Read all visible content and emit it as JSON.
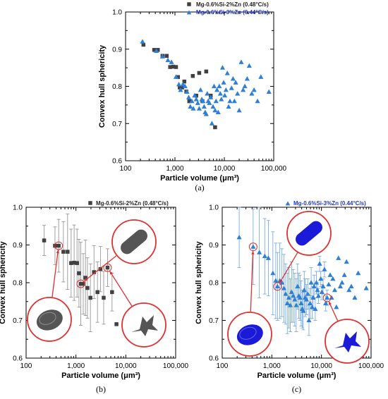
{
  "panel_labels": [
    "(a)",
    "(b)",
    "(c)"
  ],
  "colors": {
    "series_a": "#404040",
    "series_b": "#2e7fd6",
    "legend_b_text": "#1f35c8",
    "highlight": "#e03030",
    "particle_gray": "#555555",
    "particle_blue": "#1a1ad8"
  },
  "chart_data": [
    {
      "type": "scatter",
      "panel": "(a)",
      "xlabel": "Particle volume (μm³)",
      "ylabel": "Convex hull sphericity",
      "xscale": "log",
      "xlim": [
        100,
        100000
      ],
      "ylim": [
        0.6,
        1.0
      ],
      "xticks": [
        "100",
        "1,000",
        "10,000",
        "100,000"
      ],
      "yticks": [
        "0.6",
        "0.7",
        "0.8",
        "0.9",
        "1.0"
      ],
      "legend_position": "top-center",
      "series": [
        {
          "name": "Mg-0.6%Si-2%Zn (0.48°C/s)",
          "marker": "square",
          "x": [
            230,
            380,
            450,
            560,
            680,
            800,
            920,
            1050,
            1150,
            1250,
            1400,
            1550,
            1700,
            1950,
            2300,
            2700,
            3100,
            3600,
            4300,
            5300,
            6500
          ],
          "y": [
            0.912,
            0.898,
            0.898,
            0.882,
            0.882,
            0.852,
            0.853,
            0.852,
            0.825,
            0.797,
            0.797,
            0.813,
            0.786,
            0.76,
            0.828,
            0.775,
            0.836,
            0.76,
            0.84,
            0.775,
            0.69
          ]
        },
        {
          "name": "Mg-0.6%Si-3%Zn (0.44°C/s)",
          "marker": "triangle",
          "x": [
            220,
            420,
            560,
            720,
            850,
            1050,
            1200,
            1300,
            1450,
            1600,
            1750,
            1900,
            2050,
            2200,
            2350,
            2500,
            2700,
            2900,
            3100,
            3300,
            3500,
            3700,
            3900,
            4100,
            4300,
            4500,
            4700,
            5000,
            5300,
            5600,
            5900,
            6200,
            6500,
            6800,
            7100,
            7500,
            7900,
            8300,
            8700,
            9200,
            9700,
            10200,
            10800,
            11500,
            12200,
            13000,
            14000,
            15000,
            16000,
            17000,
            18500,
            20000,
            22000,
            24000,
            26000,
            29000,
            32000,
            36000,
            40000,
            47000,
            55000,
            80000
          ],
          "y": [
            0.92,
            0.895,
            0.88,
            0.87,
            0.865,
            0.825,
            0.805,
            0.79,
            0.805,
            0.8,
            0.785,
            0.77,
            0.745,
            0.76,
            0.74,
            0.775,
            0.765,
            0.755,
            0.74,
            0.79,
            0.765,
            0.76,
            0.745,
            0.73,
            0.725,
            0.78,
            0.76,
            0.755,
            0.77,
            0.7,
            0.745,
            0.8,
            0.735,
            0.76,
            0.79,
            0.73,
            0.8,
            0.78,
            0.765,
            0.85,
            0.81,
            0.775,
            0.79,
            0.835,
            0.745,
            0.76,
            0.795,
            0.82,
            0.76,
            0.81,
            0.78,
            0.735,
            0.865,
            0.79,
            0.8,
            0.82,
            0.855,
            0.78,
            0.79,
            0.76,
            0.825,
            0.785
          ]
        }
      ]
    },
    {
      "type": "scatter",
      "panel": "(b)",
      "xlabel": "Particle volume (μm³)",
      "ylabel": "Convex hull sphericity",
      "xscale": "log",
      "xlim": [
        100,
        100000
      ],
      "ylim": [
        0.6,
        1.0
      ],
      "xticks": [
        "100",
        "1,000",
        "10,000",
        "100,000"
      ],
      "yticks": [
        "0.6",
        "0.7",
        "0.8",
        "0.9",
        "1.0"
      ],
      "legend_position": "top-right",
      "error_bars": true,
      "series": [
        {
          "name": "Mg-0.6%Si-2%Zn (0.48°C/s)",
          "marker": "square",
          "x": [
            230,
            380,
            450,
            560,
            680,
            800,
            920,
            1050,
            1150,
            1250,
            1400,
            1550,
            1700,
            1950,
            2300,
            2700,
            3100,
            3600,
            4300,
            5300,
            6500
          ],
          "y": [
            0.912,
            0.898,
            0.898,
            0.882,
            0.882,
            0.852,
            0.853,
            0.852,
            0.825,
            0.797,
            0.797,
            0.813,
            0.786,
            0.76,
            0.828,
            0.775,
            0.836,
            0.76,
            0.84,
            0.775,
            0.69
          ],
          "err": [
            0.04,
            0.05,
            0.07,
            0.08,
            0.1,
            0.09,
            0.1,
            0.09,
            0.09,
            0.11,
            0.08,
            0.1,
            0.08,
            0.09,
            0.07,
            0.08,
            0.06,
            0.07,
            0.05,
            0.05,
            0.0
          ]
        }
      ],
      "highlighted": [
        450,
        1300,
        4100
      ]
    },
    {
      "type": "scatter",
      "panel": "(c)",
      "xlabel": "Particle volume (μm³)",
      "ylabel": "Convex hull sphericity",
      "xscale": "log",
      "xlim": [
        100,
        100000
      ],
      "ylim": [
        0.6,
        1.0
      ],
      "xticks": [
        "100",
        "1,000",
        "10,000",
        "100,000"
      ],
      "yticks": [
        "0.6",
        "0.7",
        "0.8",
        "0.9",
        "1.0"
      ],
      "legend_position": "top-right",
      "error_bars": true,
      "series": [
        {
          "name": "Mg-0.6%Si-3%Zn (0.44°C/s)",
          "marker": "triangle",
          "x": [
            220,
            420,
            560,
            720,
            850,
            1050,
            1200,
            1300,
            1450,
            1600,
            1750,
            1900,
            2050,
            2200,
            2350,
            2500,
            2700,
            2900,
            3100,
            3300,
            3500,
            3700,
            3900,
            4100,
            4300,
            4500,
            4700,
            5000,
            5300,
            5600,
            5900,
            6200,
            6500,
            6800,
            7100,
            7500,
            7900,
            8300,
            8700,
            9200,
            9700,
            10200,
            10800,
            11500,
            12200,
            13000,
            14000,
            15000,
            16000,
            17000,
            18500,
            20000,
            22000,
            24000,
            26000,
            29000,
            32000,
            36000,
            40000,
            47000,
            55000,
            80000
          ],
          "y": [
            0.92,
            0.895,
            0.88,
            0.87,
            0.865,
            0.825,
            0.805,
            0.79,
            0.805,
            0.8,
            0.785,
            0.77,
            0.745,
            0.76,
            0.74,
            0.775,
            0.765,
            0.755,
            0.74,
            0.79,
            0.765,
            0.76,
            0.745,
            0.73,
            0.725,
            0.78,
            0.76,
            0.755,
            0.77,
            0.7,
            0.745,
            0.8,
            0.735,
            0.76,
            0.79,
            0.73,
            0.8,
            0.78,
            0.765,
            0.85,
            0.81,
            0.775,
            0.79,
            0.835,
            0.745,
            0.76,
            0.795,
            0.82,
            0.76,
            0.81,
            0.78,
            0.735,
            0.865,
            0.79,
            0.8,
            0.82,
            0.855,
            0.78,
            0.79,
            0.76,
            0.825,
            0.785
          ],
          "err": [
            0.08,
            0.1,
            0.12,
            0.1,
            0.1,
            0.11,
            0.1,
            0.09,
            0.1,
            0.09,
            0.09,
            0.08,
            0.08,
            0.08,
            0.07,
            0.08,
            0.07,
            0.07,
            0.07,
            0.06,
            0.06,
            0.06,
            0.06,
            0.05,
            0.05,
            0.05,
            0.05,
            0.04,
            0.04,
            0.04,
            0.04,
            0.04,
            0.03,
            0.03,
            0.03,
            0.03,
            0.03,
            0.02,
            0.02,
            0.02,
            0.02,
            0.02,
            0.02,
            0.02,
            0.02,
            0.02,
            0.0,
            0.0,
            0.0,
            0.0,
            0.0,
            0.0,
            0.0,
            0.0,
            0.0,
            0.0,
            0.0,
            0.0,
            0.0,
            0.0,
            0.0,
            0.0
          ]
        }
      ],
      "highlighted": [
        450,
        1300,
        13000
      ]
    }
  ]
}
